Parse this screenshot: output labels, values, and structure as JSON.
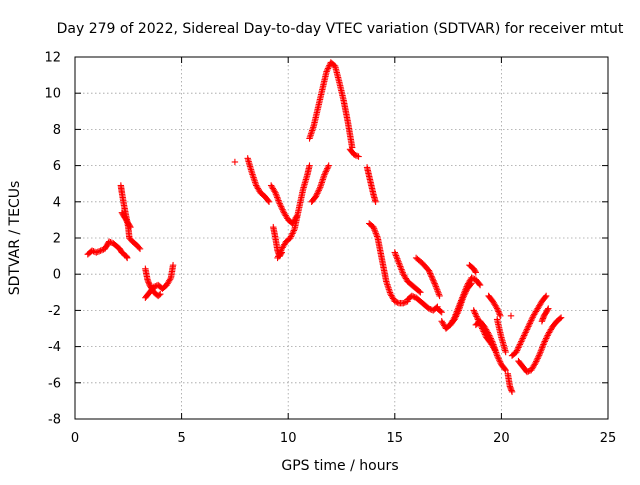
{
  "chart_data": {
    "type": "scatter",
    "title": "Day 279 of 2022, Sidereal Day-to-day VTEC variation (SDTVAR) for receiver mtut",
    "xlabel": "GPS time / hours",
    "ylabel": "SDTVAR / TECUs",
    "xlim": [
      0,
      25
    ],
    "ylim": [
      -8,
      12
    ],
    "x_ticks": [
      "0",
      "5",
      "10",
      "15",
      "20",
      "25"
    ],
    "y_ticks": [
      "-8",
      "-6",
      "-4",
      "-2",
      "0",
      "2",
      "4",
      "6",
      "8",
      "10",
      "12"
    ],
    "grid": true,
    "marker": "+",
    "series": [
      {
        "name": "mtut",
        "color": "#ff0000",
        "segments": [
          {
            "x": [
              0.6,
              0.8,
              1.0,
              1.2,
              1.4,
              1.5,
              1.6,
              1.8,
              2.0,
              2.1,
              2.2,
              2.3,
              2.4,
              2.45
            ],
            "y": [
              1.1,
              1.3,
              1.2,
              1.3,
              1.4,
              1.6,
              1.8,
              1.7,
              1.5,
              1.4,
              1.2,
              1.1,
              1.0,
              0.9
            ]
          },
          {
            "x": [
              2.15,
              2.2,
              2.3,
              2.4,
              2.5,
              2.55
            ],
            "y": [
              4.9,
              4.5,
              3.8,
              3.2,
              2.6,
              2.0
            ]
          },
          {
            "x": [
              2.2,
              2.3,
              2.4,
              2.5,
              2.6
            ],
            "y": [
              3.4,
              3.2,
              3.0,
              2.8,
              2.6
            ]
          },
          {
            "x": [
              2.55,
              2.7,
              2.9,
              3.05
            ],
            "y": [
              2.0,
              1.8,
              1.6,
              1.4
            ]
          },
          {
            "x": [
              3.3,
              3.4,
              3.5,
              3.6,
              3.7,
              3.8,
              3.9,
              4.0
            ],
            "y": [
              0.3,
              -0.3,
              -0.6,
              -0.8,
              -1.0,
              -1.1,
              -1.2,
              -1.1
            ]
          },
          {
            "x": [
              3.3,
              3.5,
              3.7,
              3.9,
              4.1,
              4.3,
              4.5,
              4.6
            ],
            "y": [
              -1.3,
              -1.0,
              -0.7,
              -0.6,
              -0.8,
              -0.6,
              -0.2,
              0.5
            ]
          },
          {
            "x": [
              7.5
            ],
            "y": [
              6.2
            ]
          },
          {
            "x": [
              8.1,
              8.3,
              8.5,
              8.7,
              8.9,
              9.1
            ],
            "y": [
              6.4,
              5.6,
              4.9,
              4.5,
              4.3,
              4.0
            ]
          },
          {
            "x": [
              9.2,
              9.4,
              9.6,
              9.8,
              10.0,
              10.2,
              10.4
            ],
            "y": [
              4.9,
              4.5,
              3.9,
              3.4,
              3.0,
              2.8,
              3.2
            ]
          },
          {
            "x": [
              9.3,
              9.4,
              9.5,
              9.6,
              9.7
            ],
            "y": [
              2.6,
              2.0,
              1.3,
              1.0,
              1.2
            ]
          },
          {
            "x": [
              9.5,
              9.7,
              9.9,
              10.1,
              10.3,
              10.5,
              10.7,
              10.9,
              11.0
            ],
            "y": [
              0.9,
              1.4,
              1.8,
              2.0,
              2.5,
              3.6,
              4.7,
              5.5,
              6.0
            ]
          },
          {
            "x": [
              11.1,
              11.3,
              11.5,
              11.7,
              11.9
            ],
            "y": [
              4.0,
              4.3,
              4.8,
              5.5,
              6.0
            ]
          },
          {
            "x": [
              11.0,
              11.2,
              11.4,
              11.6,
              11.8,
              12.0,
              12.2,
              12.4,
              12.6,
              12.8,
              13.0
            ],
            "y": [
              7.5,
              8.2,
              9.2,
              10.2,
              11.2,
              11.7,
              11.5,
              10.6,
              9.6,
              8.4,
              7.0
            ]
          },
          {
            "x": [
              12.9,
              13.1,
              13.3
            ],
            "y": [
              6.9,
              6.6,
              6.5
            ]
          },
          {
            "x": [
              13.7,
              13.8,
              13.9,
              14.0,
              14.1
            ],
            "y": [
              5.9,
              5.4,
              4.9,
              4.4,
              4.0
            ]
          },
          {
            "x": [
              13.8,
              14.0,
              14.2,
              14.4,
              14.6,
              14.8,
              15.0,
              15.2,
              15.4,
              15.6
            ],
            "y": [
              2.8,
              2.6,
              2.0,
              0.8,
              -0.4,
              -1.1,
              -1.5,
              -1.6,
              -1.6,
              -1.5
            ]
          },
          {
            "x": [
              15.0,
              15.2,
              15.4,
              15.6,
              15.8,
              16.0,
              16.2
            ],
            "y": [
              1.2,
              0.6,
              0.0,
              -0.4,
              -0.6,
              -0.8,
              -1.0
            ]
          },
          {
            "x": [
              15.6,
              15.8,
              16.0,
              16.2,
              16.4,
              16.6,
              16.8,
              17.0
            ],
            "y": [
              -1.4,
              -1.2,
              -1.3,
              -1.5,
              -1.7,
              -1.9,
              -2.0,
              -1.8
            ]
          },
          {
            "x": [
              16.0,
              16.3,
              16.6,
              16.9,
              17.1
            ],
            "y": [
              0.9,
              0.6,
              0.2,
              -0.6,
              -1.2
            ]
          },
          {
            "x": [
              17.0,
              17.2
            ],
            "y": [
              -1.9,
              -2.1
            ]
          },
          {
            "x": [
              17.2,
              17.4,
              17.6,
              17.8,
              18.0,
              18.2,
              18.4,
              18.6
            ],
            "y": [
              -2.6,
              -3.0,
              -2.8,
              -2.5,
              -2.0,
              -1.3,
              -0.8,
              -0.5
            ]
          },
          {
            "x": [
              17.6,
              17.8,
              18.0,
              18.2,
              18.4,
              18.6,
              18.8,
              19.0
            ],
            "y": [
              -2.8,
              -2.4,
              -1.8,
              -1.2,
              -0.6,
              -0.2,
              -0.3,
              -0.6
            ]
          },
          {
            "x": [
              18.5,
              18.6,
              18.7,
              18.8
            ],
            "y": [
              0.5,
              0.4,
              0.3,
              0.1
            ]
          },
          {
            "x": [
              18.7,
              18.9,
              19.1,
              19.3,
              19.5,
              19.7
            ],
            "y": [
              -2.0,
              -2.5,
              -3.0,
              -3.5,
              -3.8,
              -4.2
            ]
          },
          {
            "x": [
              18.8,
              19.0,
              19.2,
              19.4,
              19.6,
              19.8,
              20.0,
              20.2
            ],
            "y": [
              -2.8,
              -2.6,
              -2.9,
              -3.3,
              -3.8,
              -4.5,
              -5.0,
              -5.3
            ]
          },
          {
            "x": [
              19.4,
              19.6,
              19.8,
              19.95
            ],
            "y": [
              -1.2,
              -1.5,
              -1.9,
              -2.3
            ]
          },
          {
            "x": [
              19.8,
              20.0,
              20.2
            ],
            "y": [
              -2.5,
              -3.5,
              -4.3
            ]
          },
          {
            "x": [
              20.3,
              20.4,
              20.5
            ],
            "y": [
              -5.5,
              -6.2,
              -6.5
            ]
          },
          {
            "x": [
              20.45
            ],
            "y": [
              -2.3
            ]
          },
          {
            "x": [
              20.5,
              20.7,
              20.9,
              21.1,
              21.3,
              21.5,
              21.7,
              21.9,
              22.1
            ],
            "y": [
              -4.5,
              -4.3,
              -3.8,
              -3.3,
              -2.8,
              -2.3,
              -1.9,
              -1.5,
              -1.2
            ]
          },
          {
            "x": [
              20.8,
              21.0,
              21.2,
              21.4,
              21.6,
              21.8,
              22.0,
              22.2,
              22.4,
              22.6,
              22.8
            ],
            "y": [
              -4.8,
              -5.1,
              -5.4,
              -5.3,
              -4.9,
              -4.4,
              -3.8,
              -3.3,
              -2.9,
              -2.6,
              -2.4
            ]
          },
          {
            "x": [
              21.9,
              22.0,
              22.1,
              22.2
            ],
            "y": [
              -2.6,
              -2.3,
              -2.1,
              -1.9
            ]
          }
        ]
      }
    ]
  }
}
